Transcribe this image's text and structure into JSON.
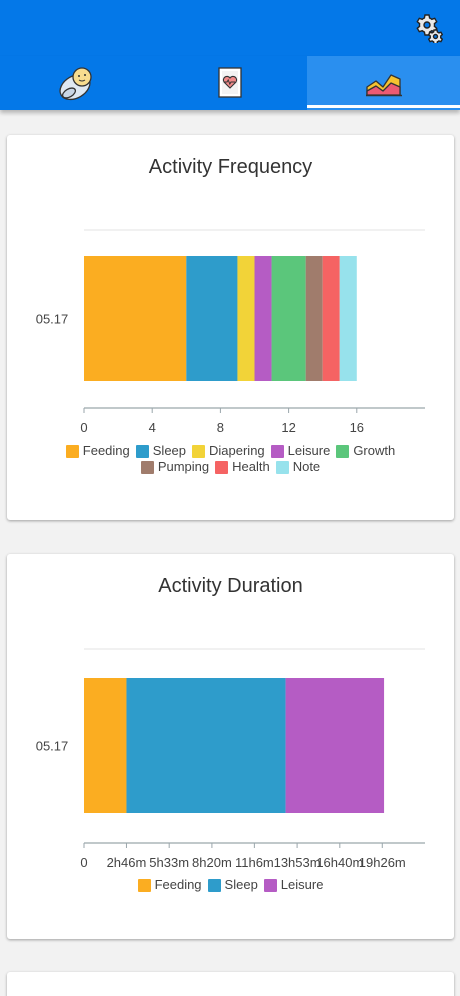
{
  "header": {
    "settings_icon": "gear-icon",
    "tabs": [
      {
        "icon": "baby-icon",
        "active": false
      },
      {
        "icon": "health-record-icon",
        "active": false
      },
      {
        "icon": "chart-icon",
        "active": true
      }
    ]
  },
  "colors": {
    "primary": "#0478e8",
    "tab_active": "#2a8fef",
    "feeding": "#fbad21",
    "sleep": "#2e9ccb",
    "diapering": "#f2d338",
    "leisure": "#b55cc4",
    "growth": "#5bc67b",
    "pumping": "#a07c6c",
    "health": "#f56363",
    "note": "#97e2ec"
  },
  "frequency_card": {
    "title": "Activity Frequency",
    "legend": [
      {
        "label": "Feeding",
        "color": "#fbad21"
      },
      {
        "label": "Sleep",
        "color": "#2e9ccb"
      },
      {
        "label": "Diapering",
        "color": "#f2d338"
      },
      {
        "label": "Leisure",
        "color": "#b55cc4"
      },
      {
        "label": "Growth",
        "color": "#5bc67b"
      },
      {
        "label": "Pumping",
        "color": "#a07c6c"
      },
      {
        "label": "Health",
        "color": "#f56363"
      },
      {
        "label": "Note",
        "color": "#97e2ec"
      }
    ]
  },
  "duration_card": {
    "title": "Activity Duration",
    "legend": [
      {
        "label": "Feeding",
        "color": "#fbad21"
      },
      {
        "label": "Sleep",
        "color": "#2e9ccb"
      },
      {
        "label": "Leisure",
        "color": "#b55cc4"
      }
    ]
  },
  "chart_data": [
    {
      "type": "bar",
      "orientation": "horizontal",
      "stacked": true,
      "title": "Activity Frequency",
      "categories": [
        "05.17"
      ],
      "series": [
        {
          "name": "Feeding",
          "values": [
            6
          ]
        },
        {
          "name": "Sleep",
          "values": [
            3
          ]
        },
        {
          "name": "Diapering",
          "values": [
            1
          ]
        },
        {
          "name": "Leisure",
          "values": [
            1
          ]
        },
        {
          "name": "Growth",
          "values": [
            2
          ]
        },
        {
          "name": "Pumping",
          "values": [
            1
          ]
        },
        {
          "name": "Health",
          "values": [
            1
          ]
        },
        {
          "name": "Note",
          "values": [
            1
          ]
        }
      ],
      "xlim": [
        0,
        20
      ],
      "xticks": [
        0,
        4,
        8,
        12,
        16
      ],
      "xtick_labels": [
        "0",
        "4",
        "8",
        "12",
        "16"
      ],
      "legend_position": "bottom"
    },
    {
      "type": "bar",
      "orientation": "horizontal",
      "stacked": true,
      "title": "Activity Duration",
      "categories": [
        "05.17"
      ],
      "series": [
        {
          "name": "Feeding",
          "values": [
            166
          ]
        },
        {
          "name": "Sleep",
          "values": [
            622
          ]
        },
        {
          "name": "Leisure",
          "values": [
            385
          ]
        }
      ],
      "xlim": [
        0,
        1333
      ],
      "xticks": [
        0,
        166,
        333,
        500,
        666,
        833,
        1000,
        1166
      ],
      "xtick_labels": [
        "0",
        "2h46m",
        "5h33m",
        "8h20m",
        "11h6m",
        "13h53m",
        "16h40m",
        "19h26m"
      ],
      "legend_position": "bottom"
    }
  ]
}
